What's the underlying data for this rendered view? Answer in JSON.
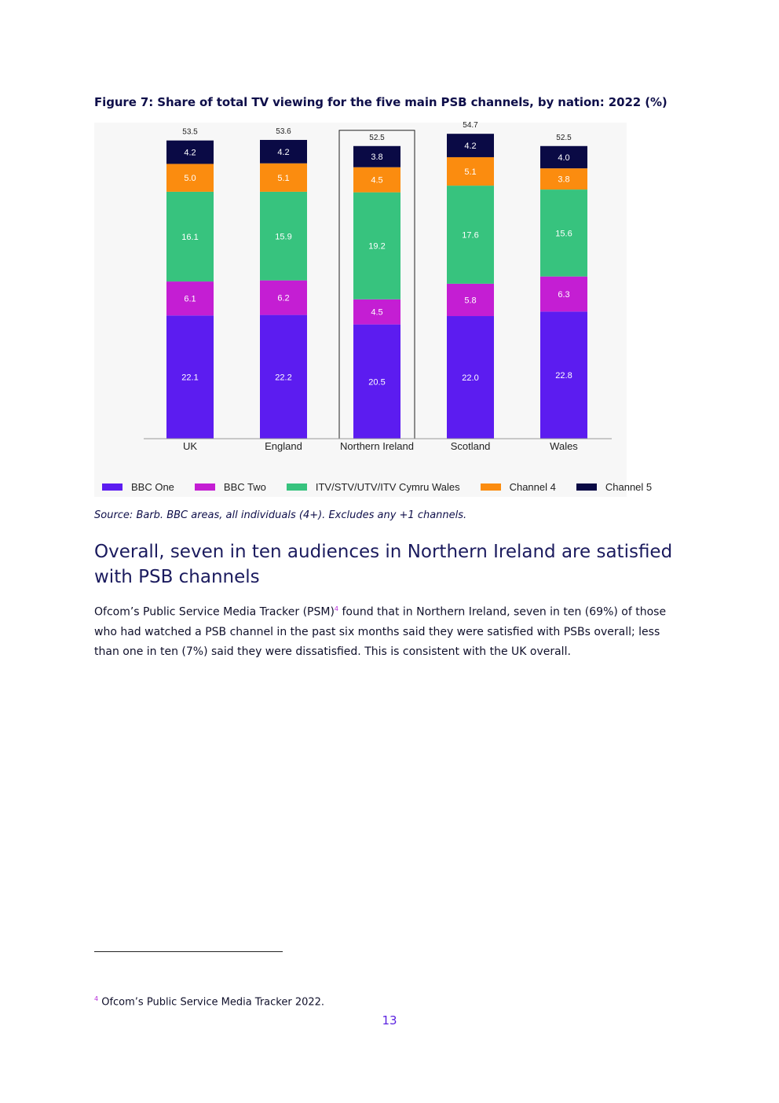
{
  "figure_title": "Figure 7: Share of total TV viewing for the five main PSB channels, by nation: 2022 (%)",
  "chart_data": {
    "type": "bar",
    "stacked": true,
    "categories": [
      "UK",
      "England",
      "Northern Ireland",
      "Scotland",
      "Wales"
    ],
    "highlighted_category": "Northern Ireland",
    "series": [
      {
        "name": "BBC One",
        "color": "#5c1cf0",
        "values": [
          22.1,
          22.2,
          20.5,
          22.0,
          22.8
        ]
      },
      {
        "name": "BBC Two",
        "color": "#c41ed3",
        "values": [
          6.1,
          6.2,
          4.5,
          5.8,
          6.3
        ]
      },
      {
        "name": "ITV/STV/UTV/ITV Cymru Wales",
        "color": "#37c37e",
        "values": [
          16.1,
          15.9,
          19.2,
          17.6,
          15.6
        ]
      },
      {
        "name": "Channel 4",
        "color": "#fb8c0f",
        "values": [
          5.0,
          5.1,
          4.5,
          5.1,
          3.8
        ]
      },
      {
        "name": "Channel 5",
        "color": "#0a0a45",
        "values": [
          4.2,
          4.2,
          3.8,
          4.2,
          4.0
        ]
      }
    ],
    "totals": [
      "53.5",
      "53.6",
      "52.5",
      "54.7",
      "52.5"
    ],
    "legend_position": "bottom",
    "grid": false
  },
  "source": "Source: Barb. BBC areas, all individuals (4+). Excludes any +1 channels.",
  "heading": "Overall, seven in ten audiences in Northern Ireland are satisfied with PSB channels",
  "paragraph": {
    "before_ref": "Ofcom’s Public Service Media Tracker (PSM)",
    "ref": "4",
    "after_ref": " found that in Northern Ireland, seven in ten (69%) of those who had watched a PSB channel in the past six months said they were satisfied with PSBs overall; less than one in ten (7%) said they were dissatisfied. This is consistent with the UK overall."
  },
  "footnote": {
    "ref": "4",
    "text": " Ofcom’s Public Service Media Tracker 2022."
  },
  "page_number": "13"
}
